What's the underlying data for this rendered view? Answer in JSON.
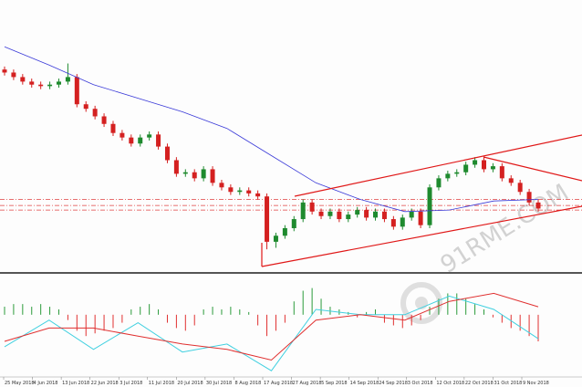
{
  "chart_data": {
    "type": "candlestick",
    "x_labels": [
      "25 May 2018",
      "4 Jun 2018",
      "13 Jun 2018",
      "22 Jun 2018",
      "3 Jul 2018",
      "11 Jul 2018",
      "20 Jul 2018",
      "30 Jul 2018",
      "8 Aug 2018",
      "17 Aug 2018",
      "27 Aug 2018",
      "5 Sep 2018",
      "14 Sep 2018",
      "24 Sep 2018",
      "3 Oct 2018",
      "12 Oct 2018",
      "22 Oct 2018",
      "31 Oct 2018",
      "9 Nov 2018"
    ],
    "open": [
      1284,
      1282,
      1279,
      1276,
      1274,
      1273,
      1274,
      1276,
      1279,
      1261,
      1258,
      1253,
      1248,
      1242,
      1239,
      1235,
      1239,
      1241,
      1233,
      1224,
      1215,
      1216,
      1212,
      1218,
      1209,
      1206,
      1203,
      1204,
      1202,
      1200,
      1170,
      1174,
      1179,
      1185,
      1196,
      1190,
      1187,
      1190,
      1185,
      1188,
      1191,
      1186,
      1190,
      1185,
      1180,
      1186,
      1190,
      1181,
      1206,
      1212,
      1215,
      1216,
      1221,
      1224,
      1218,
      1220,
      1212,
      1209,
      1203,
      1196
    ],
    "high": [
      1286,
      1284,
      1281,
      1278,
      1276,
      1276,
      1278,
      1288,
      1281,
      1263,
      1260,
      1255,
      1250,
      1244,
      1241,
      1241,
      1243,
      1243,
      1235,
      1226,
      1218,
      1218,
      1220,
      1220,
      1211,
      1208,
      1206,
      1206,
      1204,
      1202,
      1176,
      1181,
      1187,
      1198,
      1198,
      1192,
      1192,
      1192,
      1190,
      1193,
      1193,
      1192,
      1192,
      1187,
      1188,
      1192,
      1192,
      1208,
      1214,
      1217,
      1218,
      1223,
      1226,
      1226,
      1222,
      1222,
      1214,
      1211,
      1205,
      1198
    ],
    "low": [
      1280,
      1277,
      1274,
      1272,
      1271,
      1271,
      1272,
      1274,
      1259,
      1256,
      1251,
      1246,
      1240,
      1237,
      1233,
      1233,
      1237,
      1231,
      1222,
      1213,
      1213,
      1210,
      1210,
      1207,
      1204,
      1201,
      1201,
      1200,
      1198,
      1165,
      1166,
      1172,
      1177,
      1183,
      1188,
      1185,
      1185,
      1183,
      1183,
      1186,
      1184,
      1184,
      1183,
      1178,
      1178,
      1184,
      1179,
      1179,
      1204,
      1210,
      1213,
      1214,
      1219,
      1216,
      1216,
      1210,
      1207,
      1201,
      1194,
      1190
    ],
    "close": [
      1282,
      1279,
      1276,
      1274,
      1273,
      1274,
      1276,
      1279,
      1261,
      1258,
      1253,
      1248,
      1242,
      1239,
      1235,
      1239,
      1241,
      1233,
      1224,
      1215,
      1216,
      1212,
      1218,
      1209,
      1206,
      1203,
      1204,
      1202,
      1200,
      1170,
      1174,
      1179,
      1185,
      1196,
      1190,
      1187,
      1190,
      1185,
      1188,
      1191,
      1186,
      1190,
      1185,
      1180,
      1186,
      1190,
      1181,
      1206,
      1212,
      1215,
      1216,
      1221,
      1224,
      1218,
      1220,
      1212,
      1209,
      1203,
      1196,
      1192
    ],
    "up_color": "#1e8a2e",
    "down_color": "#d42020",
    "ylim": [
      1150,
      1330
    ],
    "ma": {
      "color": "#3a3ad8",
      "values": [
        1299,
        1287,
        1274,
        1265,
        1256,
        1245,
        1227,
        1209,
        1198,
        1190,
        1191,
        1197,
        1198
      ]
    },
    "levels": [
      1198,
      1194,
      1191
    ],
    "level_color": "#e04040",
    "macd": {
      "ylim": [
        -23,
        15
      ],
      "histogram": [
        3,
        4,
        4,
        3,
        4,
        3,
        2,
        -2,
        -6,
        -8,
        -7,
        -6,
        -5,
        -3,
        2,
        3,
        4,
        2,
        -3,
        -5,
        -6,
        -4,
        2,
        3,
        2,
        3,
        2,
        1,
        -4,
        -8,
        -6,
        -3,
        5,
        9,
        10,
        6,
        3,
        2,
        1,
        -1,
        1,
        2,
        -3,
        -4,
        -5,
        -4,
        -2,
        3,
        6,
        8,
        8,
        6,
        4,
        2,
        -1,
        -3,
        -5,
        -6,
        -8,
        -10
      ],
      "up_color": "#2a9a3a",
      "down_color": "#e03030",
      "lines": [
        {
          "color": "#40d0e0",
          "values": [
            -12,
            -2,
            -13,
            -3,
            -14,
            -11,
            -21,
            2,
            0,
            0,
            7,
            2,
            -9
          ]
        },
        {
          "color": "#e03030",
          "values": [
            -10,
            -5,
            -5,
            -8,
            -11,
            -13,
            -17,
            -2,
            0,
            -2,
            5,
            8,
            3
          ]
        }
      ]
    },
    "watermark": "91RME.COM"
  }
}
